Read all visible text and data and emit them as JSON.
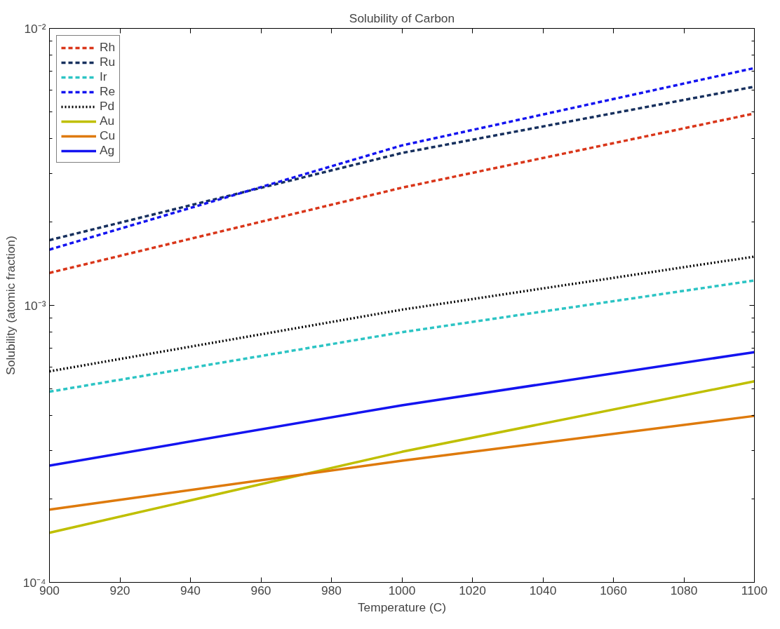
{
  "chart_data": {
    "type": "line",
    "title": "Solubility of Carbon",
    "xlabel": "Temperature (C)",
    "ylabel": "Solubility (atomic fraction)",
    "x": [
      900,
      1000,
      1100
    ],
    "xlim": [
      900,
      1100
    ],
    "xticks": [
      900,
      920,
      940,
      960,
      980,
      1000,
      1020,
      1040,
      1060,
      1080,
      1100
    ],
    "log": "y",
    "ylim": [
      0.0001,
      0.01
    ],
    "yticks": [
      {
        "value": 0.0001,
        "label": "10⁻⁴"
      },
      {
        "value": 0.001,
        "label": "10⁻³"
      },
      {
        "value": 0.01,
        "label": "10⁻²"
      }
    ],
    "legend": "top left",
    "grid": false,
    "marker": "none",
    "series": [
      {
        "name": "Rh",
        "color": "#d9361a",
        "line_style": "dashed",
        "values": [
          0.00131,
          0.00266,
          0.00493
        ]
      },
      {
        "name": "Ru",
        "color": "#17305e",
        "line_style": "dashed",
        "values": [
          0.00172,
          0.00355,
          0.00616
        ]
      },
      {
        "name": "Ir",
        "color": "#2cc4c4",
        "line_style": "dashed",
        "values": [
          0.000488,
          0.0008,
          0.00123
        ]
      },
      {
        "name": "Re",
        "color": "#1414f0",
        "line_style": "dashed",
        "values": [
          0.00159,
          0.00378,
          0.00719
        ]
      },
      {
        "name": "Pd",
        "color": "#000000",
        "line_style": "dotted",
        "values": [
          0.000578,
          0.000965,
          0.0015
        ]
      },
      {
        "name": "Au",
        "color": "#bfbf00",
        "line_style": "solid",
        "values": [
          0.000151,
          0.000296,
          0.000532
        ]
      },
      {
        "name": "Cu",
        "color": "#de7a0c",
        "line_style": "solid",
        "values": [
          0.000183,
          0.000275,
          0.000399
        ]
      },
      {
        "name": "Ag",
        "color": "#1414f0",
        "line_style": "solid",
        "values": [
          0.000264,
          0.000436,
          0.000678
        ]
      }
    ]
  }
}
